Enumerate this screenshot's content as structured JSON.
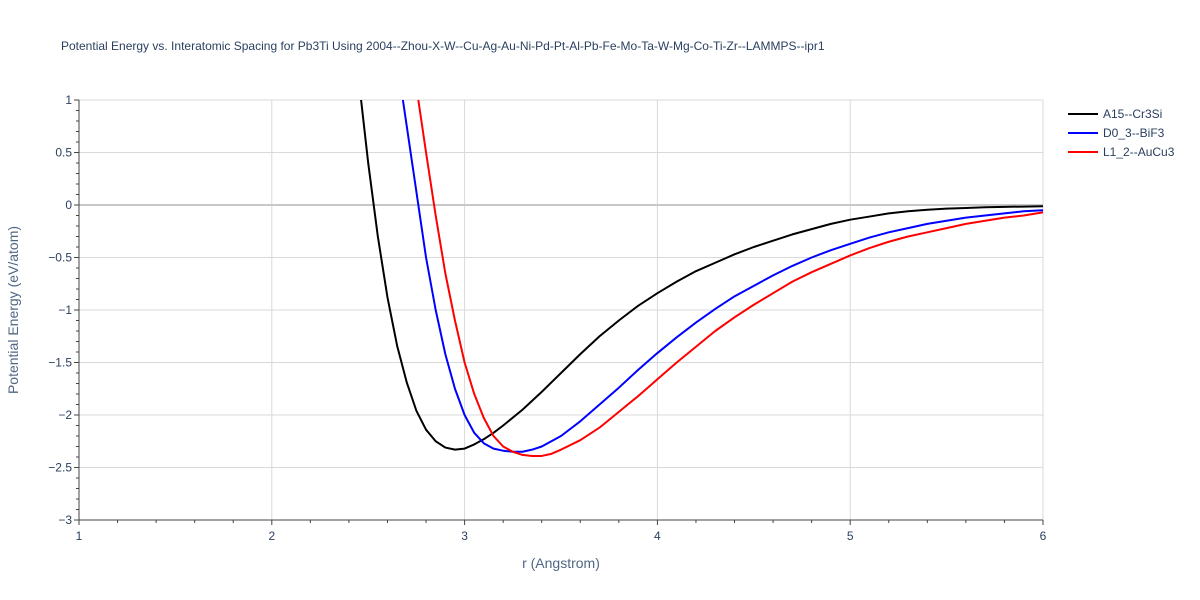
{
  "chart_data": {
    "type": "line",
    "title": "Potential Energy vs. Interatomic Spacing for Pb3Ti Using 2004--Zhou-X-W--Cu-Ag-Au-Ni-Pd-Pt-Al-Pb-Fe-Mo-Ta-W-Mg-Co-Ti-Zr--LAMMPS--ipr1",
    "xlabel": "r (Angstrom)",
    "ylabel": "Potential Energy (eV/atom)",
    "xlim": [
      1,
      6
    ],
    "ylim": [
      -3,
      1
    ],
    "x_ticks": [
      1,
      2,
      3,
      4,
      5,
      6
    ],
    "x_tick_labels": [
      "1",
      "2",
      "3",
      "4",
      "5",
      "6"
    ],
    "y_ticks": [
      -3,
      -2.5,
      -2,
      -1.5,
      -1,
      -0.5,
      0,
      0.5,
      1
    ],
    "y_tick_labels": [
      "−3",
      "−2.5",
      "−2",
      "−1.5",
      "−1",
      "−0.5",
      "0",
      "0.5",
      "1"
    ],
    "grid": true,
    "legend_position": "top-right outside",
    "series": [
      {
        "name": "A15--Cr3Si",
        "color": "#000000",
        "x": [
          2.46,
          2.5,
          2.55,
          2.6,
          2.65,
          2.7,
          2.75,
          2.8,
          2.85,
          2.9,
          2.95,
          3.0,
          3.05,
          3.1,
          3.15,
          3.2,
          3.3,
          3.4,
          3.5,
          3.6,
          3.7,
          3.8,
          3.9,
          4.0,
          4.1,
          4.2,
          4.3,
          4.4,
          4.5,
          4.6,
          4.7,
          4.8,
          4.9,
          5.0,
          5.1,
          5.2,
          5.3,
          5.4,
          5.5,
          5.6,
          5.7,
          5.8,
          5.9,
          6.0
        ],
        "y": [
          1.05,
          0.4,
          -0.3,
          -0.88,
          -1.34,
          -1.69,
          -1.96,
          -2.14,
          -2.25,
          -2.31,
          -2.33,
          -2.32,
          -2.28,
          -2.23,
          -2.17,
          -2.1,
          -1.95,
          -1.78,
          -1.6,
          -1.42,
          -1.25,
          -1.1,
          -0.96,
          -0.84,
          -0.73,
          -0.63,
          -0.55,
          -0.47,
          -0.4,
          -0.34,
          -0.28,
          -0.23,
          -0.18,
          -0.14,
          -0.11,
          -0.08,
          -0.06,
          -0.045,
          -0.035,
          -0.028,
          -0.022,
          -0.018,
          -0.015,
          -0.012
        ]
      },
      {
        "name": "D0_3--BiF3",
        "color": "#0000ff",
        "x": [
          2.68,
          2.72,
          2.76,
          2.8,
          2.85,
          2.9,
          2.95,
          3.0,
          3.05,
          3.1,
          3.15,
          3.2,
          3.25,
          3.3,
          3.35,
          3.4,
          3.5,
          3.6,
          3.7,
          3.8,
          3.9,
          4.0,
          4.1,
          4.2,
          4.3,
          4.4,
          4.5,
          4.6,
          4.7,
          4.8,
          4.9,
          5.0,
          5.1,
          5.2,
          5.3,
          5.4,
          5.5,
          5.6,
          5.7,
          5.8,
          5.9,
          6.0
        ],
        "y": [
          1.0,
          0.5,
          0.0,
          -0.5,
          -1.0,
          -1.42,
          -1.75,
          -2.0,
          -2.17,
          -2.27,
          -2.32,
          -2.34,
          -2.35,
          -2.35,
          -2.33,
          -2.3,
          -2.2,
          -2.06,
          -1.9,
          -1.74,
          -1.57,
          -1.41,
          -1.26,
          -1.12,
          -0.99,
          -0.87,
          -0.77,
          -0.67,
          -0.58,
          -0.5,
          -0.43,
          -0.37,
          -0.31,
          -0.26,
          -0.22,
          -0.18,
          -0.15,
          -0.12,
          -0.1,
          -0.08,
          -0.06,
          -0.05
        ]
      },
      {
        "name": "L1_2--AuCu3",
        "color": "#ff0000",
        "x": [
          2.76,
          2.8,
          2.85,
          2.9,
          2.95,
          3.0,
          3.05,
          3.1,
          3.15,
          3.2,
          3.25,
          3.3,
          3.35,
          3.4,
          3.45,
          3.5,
          3.6,
          3.7,
          3.8,
          3.9,
          4.0,
          4.1,
          4.2,
          4.3,
          4.4,
          4.5,
          4.6,
          4.7,
          4.8,
          4.9,
          5.0,
          5.1,
          5.2,
          5.3,
          5.4,
          5.5,
          5.6,
          5.7,
          5.8,
          5.9,
          6.0
        ],
        "y": [
          1.0,
          0.5,
          -0.1,
          -0.65,
          -1.1,
          -1.5,
          -1.8,
          -2.03,
          -2.2,
          -2.3,
          -2.35,
          -2.38,
          -2.39,
          -2.39,
          -2.37,
          -2.33,
          -2.24,
          -2.12,
          -1.97,
          -1.82,
          -1.66,
          -1.5,
          -1.35,
          -1.2,
          -1.07,
          -0.95,
          -0.84,
          -0.73,
          -0.64,
          -0.56,
          -0.48,
          -0.41,
          -0.35,
          -0.3,
          -0.26,
          -0.22,
          -0.18,
          -0.15,
          -0.12,
          -0.1,
          -0.07
        ]
      }
    ]
  }
}
